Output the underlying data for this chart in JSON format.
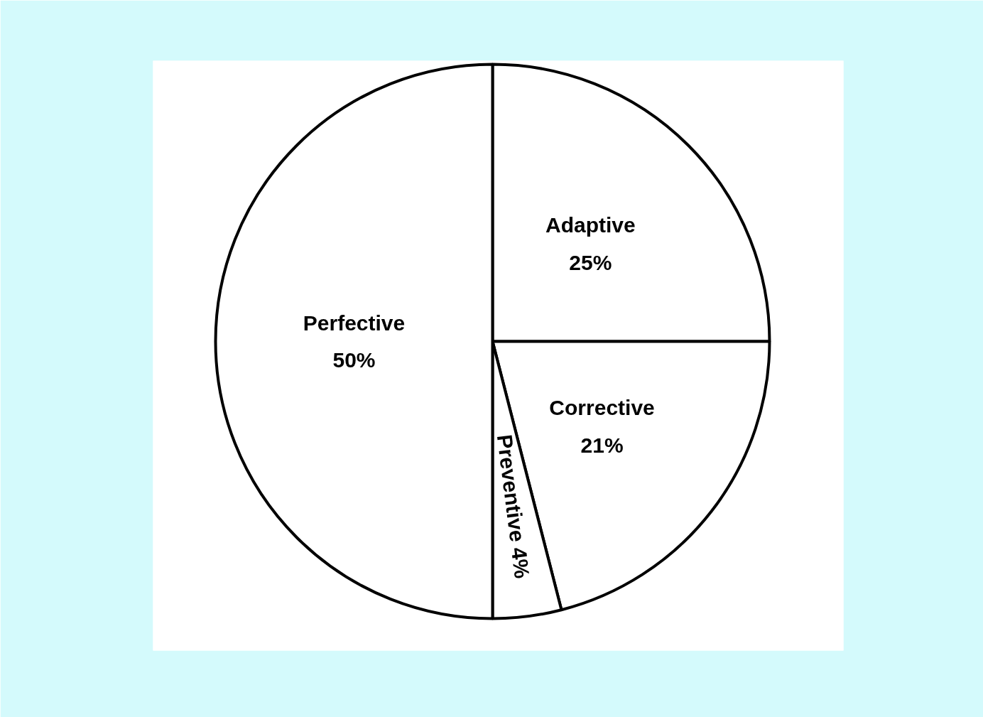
{
  "chart_data": {
    "type": "pie",
    "categories": [
      "Adaptive",
      "Corrective",
      "Preventive",
      "Perfective"
    ],
    "values": [
      25,
      21,
      4,
      50
    ],
    "value_labels": [
      "25%",
      "21%",
      "4%",
      "50%"
    ],
    "colors": [
      "#ffffff",
      "#ffffff",
      "#ffffff",
      "#ffffff"
    ]
  }
}
